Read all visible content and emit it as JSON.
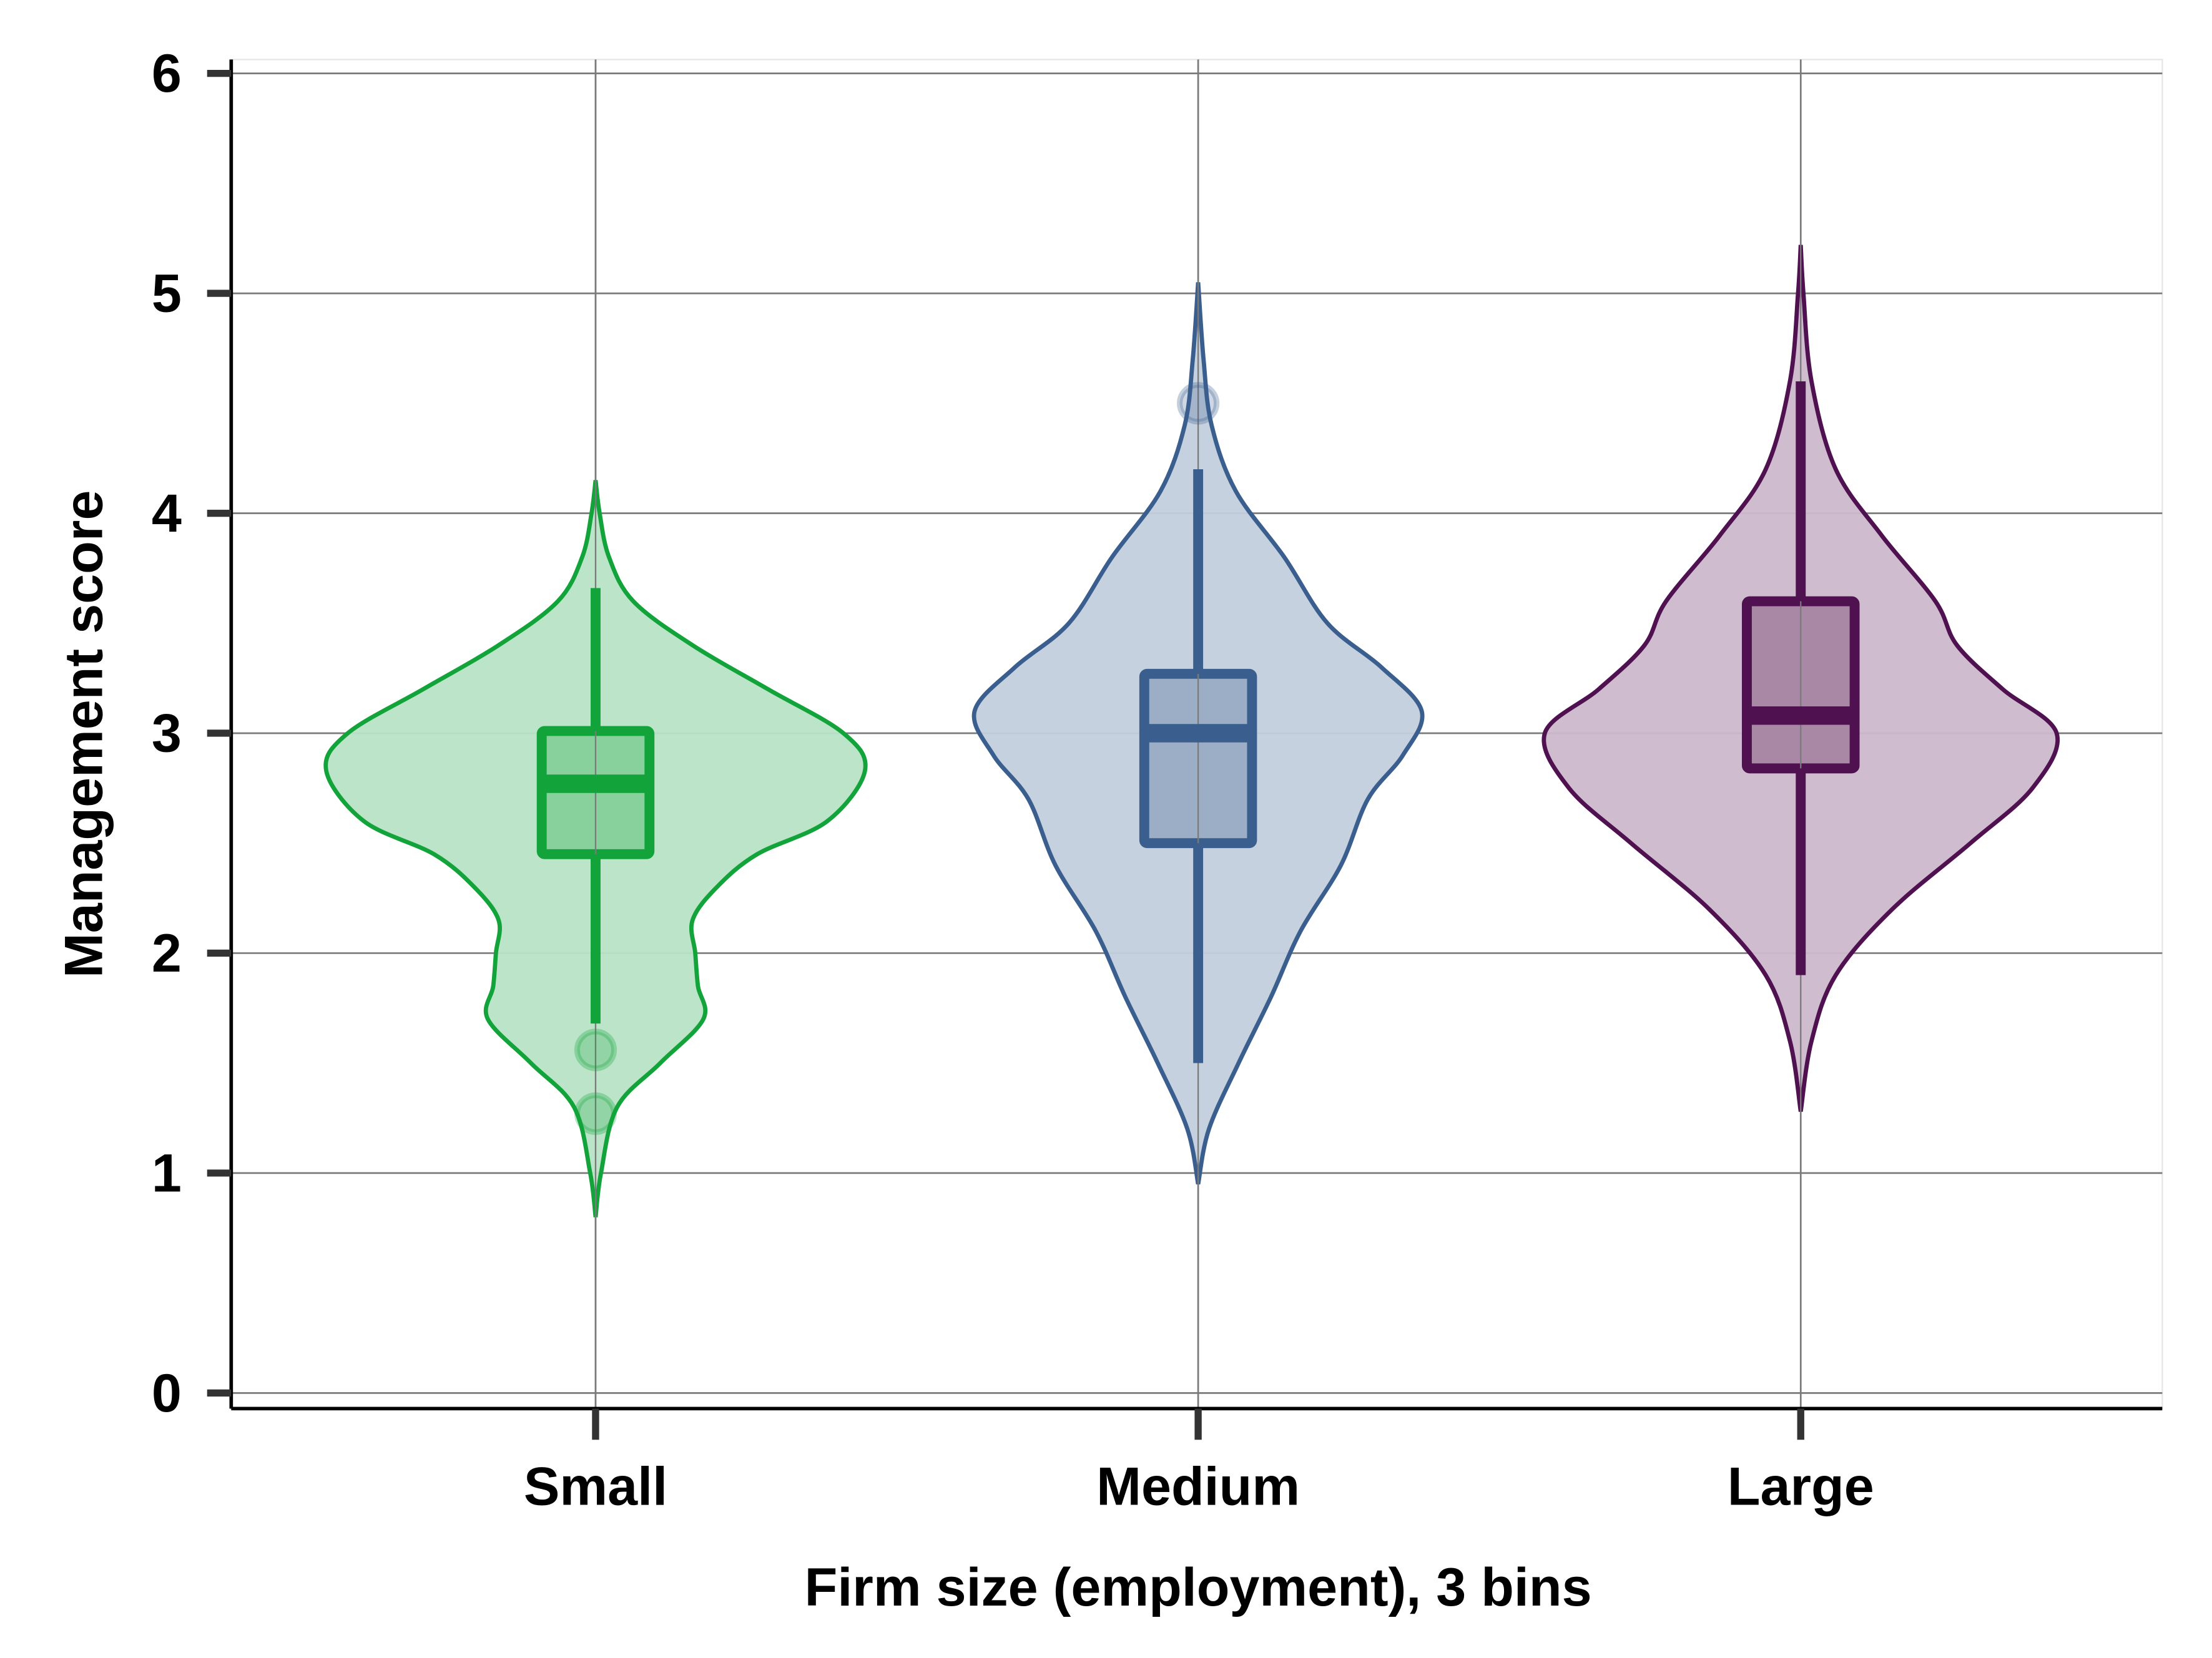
{
  "chart_data": {
    "type": "violin",
    "title": "",
    "xlabel": "Firm size (employment), 3 bins",
    "ylabel": "Management score",
    "ylim": [
      0,
      6
    ],
    "yticks": [
      "0",
      "1",
      "2",
      "3",
      "4",
      "5",
      "6"
    ],
    "categories": [
      "Small",
      "Medium",
      "Large"
    ],
    "grid": true,
    "series": [
      {
        "category": "Small",
        "color": "#12A43A",
        "violin_fill": "#B8E3C5",
        "box_fill": "#88D09C",
        "box": {
          "whisker_low": 1.68,
          "q1": 2.45,
          "median": 2.77,
          "q3": 3.01,
          "whisker_high": 3.66
        },
        "outliers": [
          1.56,
          1.27
        ],
        "density": [
          [
            0.8,
            0
          ],
          [
            1.0,
            0.02
          ],
          [
            1.3,
            0.08
          ],
          [
            1.5,
            0.24
          ],
          [
            1.7,
            0.4
          ],
          [
            1.85,
            0.38
          ],
          [
            2.0,
            0.37
          ],
          [
            2.15,
            0.36
          ],
          [
            2.3,
            0.45
          ],
          [
            2.45,
            0.6
          ],
          [
            2.6,
            0.86
          ],
          [
            2.83,
            1.0
          ],
          [
            3.0,
            0.92
          ],
          [
            3.2,
            0.64
          ],
          [
            3.4,
            0.36
          ],
          [
            3.6,
            0.14
          ],
          [
            3.8,
            0.05
          ],
          [
            4.0,
            0.015
          ],
          [
            4.15,
            0
          ]
        ]
      },
      {
        "category": "Medium",
        "color": "#3A5F8E",
        "violin_fill": "#C3CFDD",
        "box_fill": "#9CAEC6",
        "box": {
          "whisker_low": 1.5,
          "q1": 2.5,
          "median": 3.0,
          "q3": 3.27,
          "whisker_high": 4.2
        },
        "outliers": [
          4.5
        ],
        "density": [
          [
            0.95,
            0
          ],
          [
            1.2,
            0.04
          ],
          [
            1.5,
            0.15
          ],
          [
            1.8,
            0.27
          ],
          [
            2.1,
            0.38
          ],
          [
            2.4,
            0.53
          ],
          [
            2.7,
            0.63
          ],
          [
            2.9,
            0.76
          ],
          [
            3.1,
            0.83
          ],
          [
            3.3,
            0.68
          ],
          [
            3.5,
            0.48
          ],
          [
            3.8,
            0.32
          ],
          [
            4.1,
            0.14
          ],
          [
            4.4,
            0.05
          ],
          [
            4.7,
            0.02
          ],
          [
            5.05,
            0
          ]
        ]
      },
      {
        "category": "Large",
        "color": "#4F1150",
        "violin_fill": "#CCB8CC",
        "box_fill": "#A888A5",
        "box": {
          "whisker_low": 1.9,
          "q1": 2.84,
          "median": 3.08,
          "q3": 3.6,
          "whisker_high": 4.6
        },
        "outliers": [],
        "density": [
          [
            1.28,
            0
          ],
          [
            1.6,
            0.04
          ],
          [
            1.9,
            0.13
          ],
          [
            2.2,
            0.34
          ],
          [
            2.5,
            0.63
          ],
          [
            2.75,
            0.86
          ],
          [
            3.0,
            0.95
          ],
          [
            3.2,
            0.75
          ],
          [
            3.4,
            0.58
          ],
          [
            3.6,
            0.5
          ],
          [
            3.9,
            0.3
          ],
          [
            4.2,
            0.13
          ],
          [
            4.6,
            0.04
          ],
          [
            5.0,
            0.01
          ],
          [
            5.22,
            0
          ]
        ]
      }
    ]
  }
}
